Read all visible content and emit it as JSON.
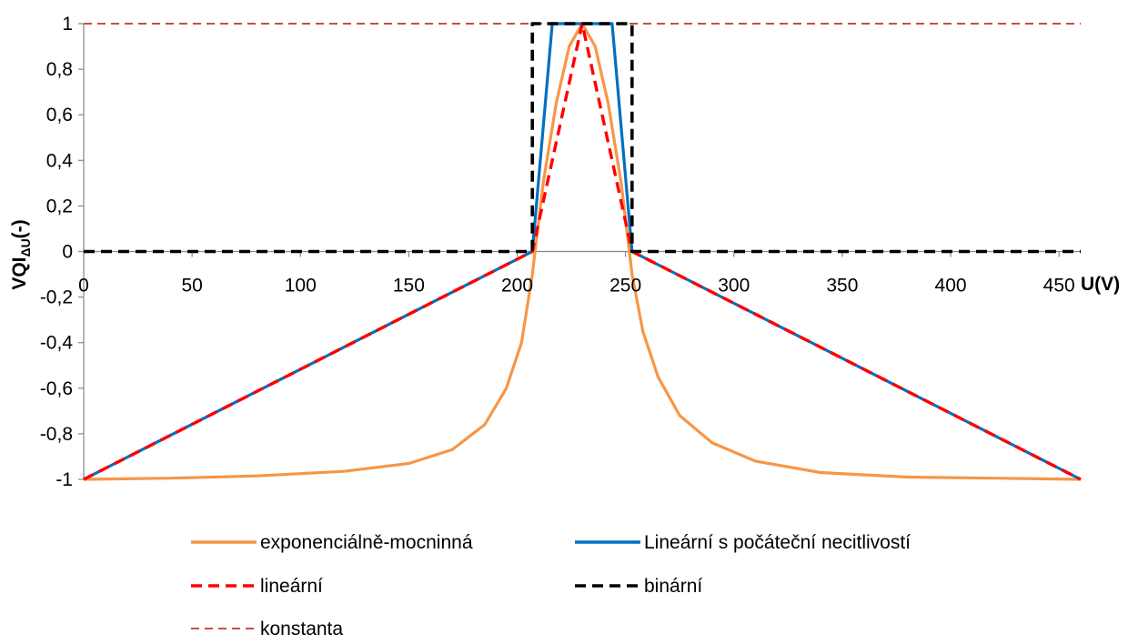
{
  "chart_data": {
    "type": "line",
    "xlabel": "U(V)",
    "ylabel": "VQI",
    "ylabel_subscript": "ΔU",
    "ylabel_suffix": "(-)",
    "xlim": [
      0,
      460
    ],
    "ylim": [
      -1,
      1
    ],
    "x_ticks": [
      0,
      50,
      100,
      150,
      200,
      250,
      300,
      350,
      400,
      450
    ],
    "x_tick_labels": [
      "0",
      "50",
      "100",
      "150",
      "200",
      "250",
      "300",
      "350",
      "400",
      "450"
    ],
    "y_ticks": [
      1,
      0.8,
      0.6,
      0.4,
      0.2,
      0,
      -0.2,
      -0.4,
      -0.6,
      -0.8,
      -1
    ],
    "y_tick_labels": [
      "1",
      "0,8",
      "0,6",
      "0,4",
      "0,2",
      "0",
      "-0,2",
      "-0,4",
      "-0,6",
      "-0,8",
      "-1"
    ],
    "grid": false,
    "legend_position": "bottom",
    "series": [
      {
        "name": "exponenciálně-mocninná",
        "color": "#f79646",
        "dash": "solid",
        "x": [
          0,
          40,
          80,
          120,
          150,
          170,
          185,
          195,
          202,
          207,
          212,
          218,
          224,
          230,
          236,
          242,
          248,
          253,
          258,
          265,
          275,
          290,
          310,
          340,
          380,
          420,
          460
        ],
        "y": [
          -1,
          -0.995,
          -0.985,
          -0.965,
          -0.93,
          -0.87,
          -0.76,
          -0.6,
          -0.4,
          -0.1,
          0.3,
          0.65,
          0.9,
          1,
          0.9,
          0.65,
          0.3,
          -0.1,
          -0.35,
          -0.55,
          -0.72,
          -0.84,
          -0.92,
          -0.97,
          -0.99,
          -0.995,
          -1
        ]
      },
      {
        "name": "Lineární s počáteční necitlivostí",
        "color": "#0070c0",
        "dash": "solid",
        "x": [
          0,
          207,
          216.2,
          243.8,
          253,
          460
        ],
        "y": [
          -1,
          0,
          1,
          1,
          0,
          -1
        ]
      },
      {
        "name": "lineární",
        "color": "#ff0000",
        "dash": "dashed",
        "x": [
          0,
          207,
          230,
          253,
          460
        ],
        "y": [
          -1,
          0,
          1,
          0,
          -1
        ]
      },
      {
        "name": "binární",
        "color": "#000000",
        "dash": "dashed",
        "x": [
          0,
          207,
          207,
          253,
          253,
          460
        ],
        "y": [
          0,
          0,
          1,
          1,
          0,
          0
        ]
      },
      {
        "name": "konstanta",
        "color": "#c0504d",
        "dash": "dashed",
        "x": [
          0,
          460
        ],
        "y": [
          1,
          1
        ]
      }
    ]
  }
}
